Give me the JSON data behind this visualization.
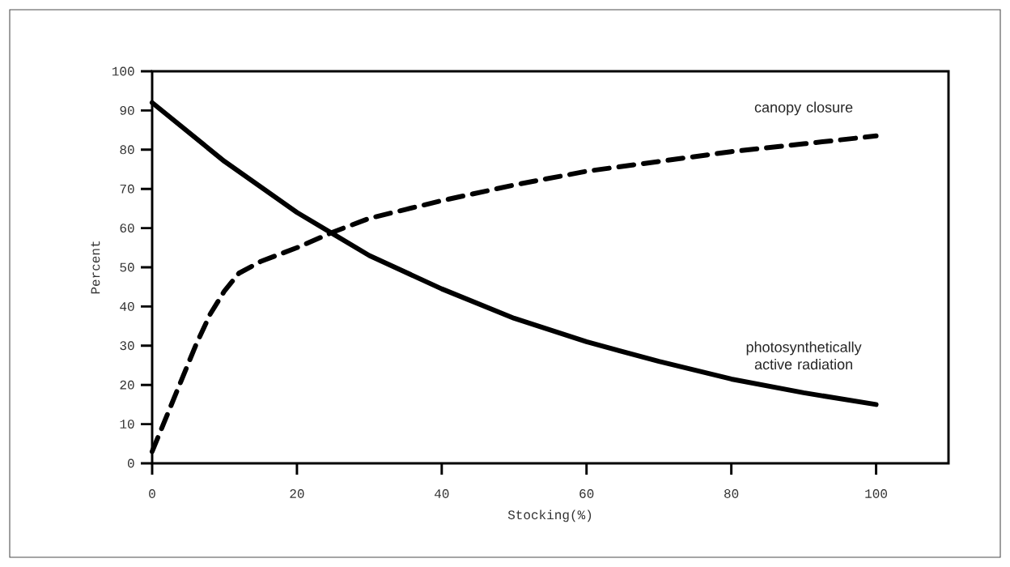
{
  "chart_data": {
    "type": "line",
    "xlabel": "Stocking(%)",
    "ylabel": "Percent",
    "xlim": [
      0,
      110
    ],
    "xticks": [
      0,
      20,
      40,
      60,
      80,
      100
    ],
    "ylim": [
      0,
      100
    ],
    "yticks": [
      0,
      10,
      20,
      30,
      40,
      50,
      60,
      70,
      80,
      90,
      100
    ],
    "marker": "none",
    "series": [
      {
        "name": "photosynthetically active radiation",
        "color": "#000000",
        "line_style": "solid",
        "x": [
          0,
          10,
          20,
          25,
          30,
          40,
          50,
          60,
          70,
          80,
          90,
          100
        ],
        "values": [
          92,
          77,
          64,
          58.5,
          53,
          44.5,
          37,
          31,
          26,
          21.5,
          18,
          15
        ]
      },
      {
        "name": "canopy closure",
        "color": "#000000",
        "line_style": "dashed",
        "x": [
          0,
          2,
          4,
          6,
          8,
          10,
          12,
          15,
          20,
          25,
          30,
          40,
          50,
          60,
          70,
          80,
          90,
          100
        ],
        "values": [
          3,
          12,
          21,
          30,
          38,
          44,
          48.5,
          51.5,
          55,
          59,
          62.5,
          67,
          71,
          74.5,
          77,
          79.5,
          81.5,
          83.5
        ]
      }
    ]
  }
}
